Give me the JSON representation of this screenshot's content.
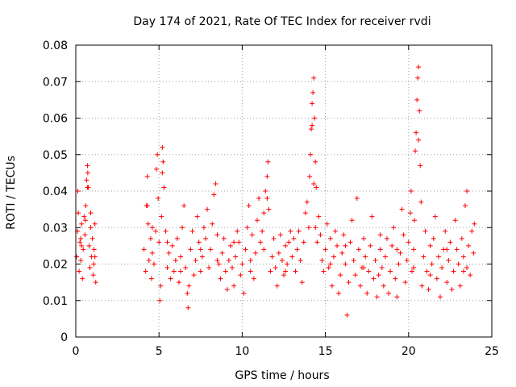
{
  "chart_data": {
    "type": "scatter",
    "title": "Day 174 of 2021, Rate Of TEC Index for receiver rvdi",
    "xlabel": "GPS time / hours",
    "ylabel": "ROTI / TECUs",
    "xlim": [
      0,
      25
    ],
    "ylim": [
      0,
      0.08
    ],
    "xticks": [
      0,
      5,
      10,
      15,
      20,
      25
    ],
    "yticks": [
      0,
      0.01,
      0.02,
      0.03,
      0.04,
      0.05,
      0.06,
      0.07,
      0.08
    ],
    "xtick_labels": [
      "0",
      "5",
      "10",
      "15",
      "20",
      "25"
    ],
    "ytick_labels": [
      "0",
      "0.01",
      "0.02",
      "0.03",
      "0.04",
      "0.05",
      "0.06",
      "0.07",
      "0.08"
    ],
    "grid": true,
    "marker": "+",
    "color": "#ff0000",
    "series": [
      {
        "name": "rvdi",
        "points": [
          [
            0.05,
            0.022
          ],
          [
            0.1,
            0.029
          ],
          [
            0.15,
            0.034
          ],
          [
            0.2,
            0.018
          ],
          [
            0.25,
            0.026
          ],
          [
            0.3,
            0.021
          ],
          [
            0.35,
            0.031
          ],
          [
            0.4,
            0.016
          ],
          [
            0.45,
            0.024
          ],
          [
            0.5,
            0.033
          ],
          [
            0.55,
            0.028
          ],
          [
            0.6,
            0.036
          ],
          [
            0.65,
            0.043
          ],
          [
            0.7,
            0.047
          ],
          [
            0.75,
            0.041
          ],
          [
            0.8,
            0.025
          ],
          [
            0.85,
            0.019
          ],
          [
            0.9,
            0.03
          ],
          [
            0.95,
            0.022
          ],
          [
            1.0,
            0.027
          ],
          [
            1.05,
            0.017
          ],
          [
            1.1,
            0.024
          ],
          [
            1.15,
            0.031
          ],
          [
            1.2,
            0.015
          ],
          [
            0.12,
            0.04
          ],
          [
            0.58,
            0.032
          ],
          [
            0.72,
            0.045
          ],
          [
            1.08,
            0.02
          ],
          [
            0.35,
            0.025
          ],
          [
            0.9,
            0.034
          ],
          [
            4.1,
            0.024
          ],
          [
            4.2,
            0.018
          ],
          [
            4.25,
            0.036
          ],
          [
            4.3,
            0.044
          ],
          [
            4.35,
            0.031
          ],
          [
            4.4,
            0.021
          ],
          [
            4.5,
            0.027
          ],
          [
            4.55,
            0.016
          ],
          [
            4.6,
            0.023
          ],
          [
            4.7,
            0.02
          ],
          [
            4.8,
            0.029
          ],
          [
            4.85,
            0.046
          ],
          [
            4.9,
            0.05
          ],
          [
            4.95,
            0.038
          ],
          [
            5.0,
            0.026
          ],
          [
            5.05,
            0.01
          ],
          [
            5.1,
            0.014
          ],
          [
            5.15,
            0.033
          ],
          [
            5.2,
            0.052
          ],
          [
            5.25,
            0.048
          ],
          [
            5.3,
            0.041
          ],
          [
            5.4,
            0.029
          ],
          [
            5.5,
            0.019
          ],
          [
            5.6,
            0.023
          ],
          [
            5.7,
            0.016
          ],
          [
            5.8,
            0.025
          ],
          [
            5.9,
            0.018
          ],
          [
            6.0,
            0.021
          ],
          [
            6.1,
            0.027
          ],
          [
            6.2,
            0.015
          ],
          [
            6.3,
            0.022
          ],
          [
            6.4,
            0.03
          ],
          [
            6.5,
            0.036
          ],
          [
            6.6,
            0.019
          ],
          [
            6.7,
            0.012
          ],
          [
            6.75,
            0.008
          ],
          [
            6.8,
            0.014
          ],
          [
            6.9,
            0.024
          ],
          [
            7.0,
            0.029
          ],
          [
            7.1,
            0.017
          ],
          [
            7.2,
            0.021
          ],
          [
            7.3,
            0.033
          ],
          [
            7.4,
            0.026
          ],
          [
            7.5,
            0.018
          ],
          [
            7.6,
            0.022
          ],
          [
            7.7,
            0.03
          ],
          [
            7.8,
            0.027
          ],
          [
            7.9,
            0.035
          ],
          [
            8.0,
            0.019
          ],
          [
            8.1,
            0.024
          ],
          [
            8.2,
            0.031
          ],
          [
            8.3,
            0.039
          ],
          [
            8.4,
            0.042
          ],
          [
            8.5,
            0.028
          ],
          [
            8.6,
            0.02
          ],
          [
            8.7,
            0.016
          ],
          [
            8.8,
            0.023
          ],
          [
            8.9,
            0.027
          ],
          [
            9.0,
            0.018
          ],
          [
            9.1,
            0.013
          ],
          [
            9.2,
            0.021
          ],
          [
            9.3,
            0.025
          ],
          [
            9.4,
            0.019
          ],
          [
            9.5,
            0.014
          ],
          [
            9.6,
            0.022
          ],
          [
            9.7,
            0.029
          ],
          [
            9.8,
            0.026
          ],
          [
            9.9,
            0.017
          ],
          [
            10.0,
            0.02
          ],
          [
            10.1,
            0.012
          ],
          [
            10.2,
            0.024
          ],
          [
            10.3,
            0.03
          ],
          [
            10.4,
            0.036
          ],
          [
            10.5,
            0.021
          ],
          [
            10.6,
            0.028
          ],
          [
            10.7,
            0.016
          ],
          [
            10.8,
            0.023
          ],
          [
            10.9,
            0.032
          ],
          [
            11.0,
            0.038
          ],
          [
            11.1,
            0.026
          ],
          [
            11.2,
            0.029
          ],
          [
            11.3,
            0.034
          ],
          [
            11.4,
            0.04
          ],
          [
            11.5,
            0.044
          ],
          [
            11.55,
            0.048
          ],
          [
            11.6,
            0.035
          ],
          [
            11.7,
            0.018
          ],
          [
            11.8,
            0.022
          ],
          [
            11.9,
            0.027
          ],
          [
            12.0,
            0.019
          ],
          [
            12.1,
            0.014
          ],
          [
            12.2,
            0.023
          ],
          [
            12.3,
            0.028
          ],
          [
            12.4,
            0.021
          ],
          [
            12.5,
            0.017
          ],
          [
            12.6,
            0.025
          ],
          [
            12.7,
            0.02
          ],
          [
            12.8,
            0.026
          ],
          [
            12.9,
            0.029
          ],
          [
            13.0,
            0.022
          ],
          [
            13.1,
            0.027
          ],
          [
            13.2,
            0.018
          ],
          [
            13.3,
            0.024
          ],
          [
            13.5,
            0.021
          ],
          [
            13.6,
            0.015
          ],
          [
            13.7,
            0.026
          ],
          [
            13.8,
            0.034
          ],
          [
            13.9,
            0.037
          ],
          [
            14.0,
            0.03
          ],
          [
            14.05,
            0.044
          ],
          [
            14.1,
            0.05
          ],
          [
            14.15,
            0.057
          ],
          [
            14.2,
            0.064
          ],
          [
            14.25,
            0.067
          ],
          [
            14.3,
            0.071
          ],
          [
            14.35,
            0.06
          ],
          [
            14.4,
            0.048
          ],
          [
            14.45,
            0.041
          ],
          [
            14.5,
            0.026
          ],
          [
            14.6,
            0.033
          ],
          [
            14.7,
            0.028
          ],
          [
            14.8,
            0.021
          ],
          [
            14.9,
            0.018
          ],
          [
            15.0,
            0.024
          ],
          [
            15.1,
            0.031
          ],
          [
            15.2,
            0.019
          ],
          [
            15.3,
            0.027
          ],
          [
            15.4,
            0.014
          ],
          [
            15.5,
            0.022
          ],
          [
            15.6,
            0.029
          ],
          [
            15.7,
            0.025
          ],
          [
            15.8,
            0.012
          ],
          [
            15.9,
            0.017
          ],
          [
            16.0,
            0.023
          ],
          [
            16.1,
            0.028
          ],
          [
            16.2,
            0.02
          ],
          [
            16.3,
            0.006
          ],
          [
            16.4,
            0.015
          ],
          [
            16.5,
            0.026
          ],
          [
            16.6,
            0.032
          ],
          [
            16.7,
            0.021
          ],
          [
            16.8,
            0.017
          ],
          [
            16.9,
            0.038
          ],
          [
            17.0,
            0.024
          ],
          [
            17.1,
            0.014
          ],
          [
            17.2,
            0.019
          ],
          [
            17.3,
            0.027
          ],
          [
            17.4,
            0.022
          ],
          [
            17.5,
            0.012
          ],
          [
            17.6,
            0.018
          ],
          [
            17.7,
            0.025
          ],
          [
            17.8,
            0.033
          ],
          [
            17.9,
            0.016
          ],
          [
            18.0,
            0.021
          ],
          [
            18.1,
            0.011
          ],
          [
            18.2,
            0.017
          ],
          [
            18.3,
            0.024
          ],
          [
            18.4,
            0.019
          ],
          [
            18.5,
            0.014
          ],
          [
            18.6,
            0.022
          ],
          [
            18.7,
            0.027
          ],
          [
            18.8,
            0.012
          ],
          [
            18.9,
            0.018
          ],
          [
            19.0,
            0.025
          ],
          [
            19.1,
            0.03
          ],
          [
            19.2,
            0.016
          ],
          [
            19.3,
            0.011
          ],
          [
            19.4,
            0.02
          ],
          [
            19.5,
            0.023
          ],
          [
            19.6,
            0.035
          ],
          [
            19.7,
            0.028
          ],
          [
            19.8,
            0.015
          ],
          [
            19.9,
            0.021
          ],
          [
            20.0,
            0.026
          ],
          [
            20.1,
            0.034
          ],
          [
            20.15,
            0.04
          ],
          [
            20.2,
            0.018
          ],
          [
            20.3,
            0.024
          ],
          [
            20.35,
            0.032
          ],
          [
            20.4,
            0.051
          ],
          [
            20.45,
            0.056
          ],
          [
            20.5,
            0.065
          ],
          [
            20.55,
            0.071
          ],
          [
            20.6,
            0.074
          ],
          [
            20.65,
            0.062
          ],
          [
            20.7,
            0.047
          ],
          [
            20.75,
            0.037
          ],
          [
            20.8,
            0.014
          ],
          [
            20.9,
            0.022
          ],
          [
            21.0,
            0.029
          ],
          [
            21.1,
            0.018
          ],
          [
            21.2,
            0.013
          ],
          [
            21.3,
            0.025
          ],
          [
            21.4,
            0.02
          ],
          [
            21.5,
            0.027
          ],
          [
            21.6,
            0.033
          ],
          [
            21.7,
            0.016
          ],
          [
            21.8,
            0.022
          ],
          [
            21.9,
            0.011
          ],
          [
            22.0,
            0.019
          ],
          [
            22.1,
            0.024
          ],
          [
            22.2,
            0.029
          ],
          [
            22.3,
            0.015
          ],
          [
            22.4,
            0.021
          ],
          [
            22.5,
            0.026
          ],
          [
            22.6,
            0.013
          ],
          [
            22.7,
            0.018
          ],
          [
            22.8,
            0.032
          ],
          [
            22.9,
            0.024
          ],
          [
            23.0,
            0.02
          ],
          [
            23.1,
            0.014
          ],
          [
            23.2,
            0.027
          ],
          [
            23.3,
            0.022
          ],
          [
            23.4,
            0.036
          ],
          [
            23.5,
            0.019
          ],
          [
            23.6,
            0.025
          ],
          [
            23.7,
            0.017
          ],
          [
            23.8,
            0.029
          ],
          [
            23.9,
            0.023
          ],
          [
            23.95,
            0.031
          ],
          [
            0.3,
            0.027
          ],
          [
            1.15,
            0.022
          ],
          [
            4.6,
            0.03
          ],
          [
            5.5,
            0.026
          ],
          [
            6.3,
            0.018
          ],
          [
            7.5,
            0.024
          ],
          [
            8.5,
            0.021
          ],
          [
            9.5,
            0.026
          ],
          [
            10.5,
            0.018
          ],
          [
            11.3,
            0.024
          ],
          [
            12.6,
            0.018
          ],
          [
            13.4,
            0.029
          ],
          [
            14.4,
            0.03
          ],
          [
            15.3,
            0.02
          ],
          [
            16.2,
            0.025
          ],
          [
            17.3,
            0.019
          ],
          [
            18.3,
            0.028
          ],
          [
            19.3,
            0.024
          ],
          [
            20.3,
            0.019
          ],
          [
            21.3,
            0.017
          ],
          [
            22.3,
            0.024
          ],
          [
            23.3,
            0.018
          ],
          [
            14.2,
            0.058
          ],
          [
            14.3,
            0.042
          ],
          [
            20.6,
            0.054
          ],
          [
            5.2,
            0.045
          ],
          [
            0.7,
            0.041
          ],
          [
            4.3,
            0.036
          ],
          [
            11.5,
            0.038
          ],
          [
            23.5,
            0.04
          ]
        ]
      }
    ]
  }
}
